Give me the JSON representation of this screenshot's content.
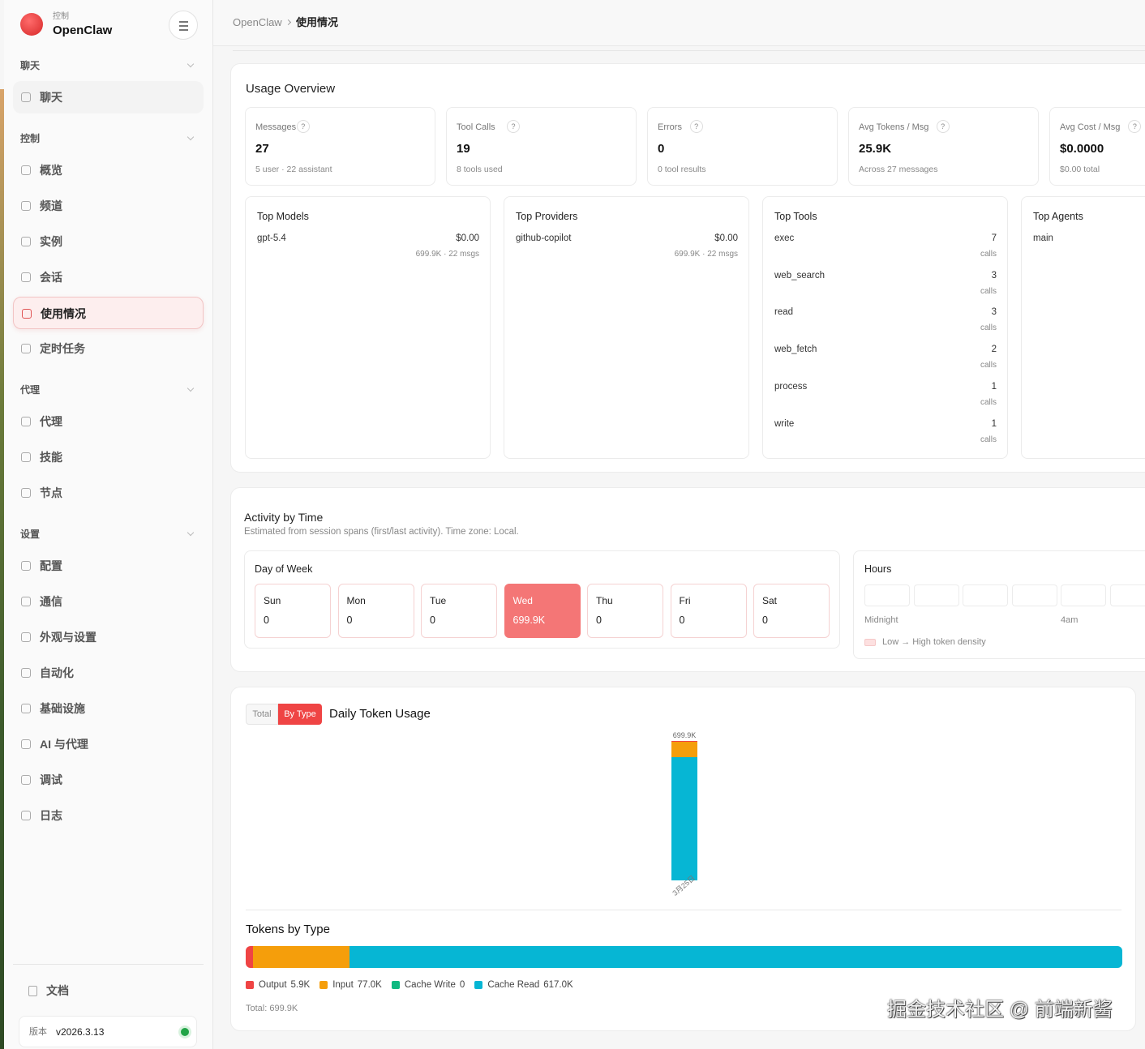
{
  "sidebar": {
    "brand": {
      "small": "控制",
      "name": "OpenClaw"
    },
    "sections": [
      {
        "title": "聊天",
        "items": [
          {
            "label": "聊天"
          }
        ]
      },
      {
        "title": "控制",
        "items": [
          {
            "label": "概览"
          },
          {
            "label": "频道"
          },
          {
            "label": "实例"
          },
          {
            "label": "会话"
          },
          {
            "label": "使用情况",
            "active": true
          },
          {
            "label": "定时任务"
          }
        ]
      },
      {
        "title": "代理",
        "items": [
          {
            "label": "代理"
          },
          {
            "label": "技能"
          },
          {
            "label": "节点"
          }
        ]
      },
      {
        "title": "设置",
        "items": [
          {
            "label": "配置"
          },
          {
            "label": "通信"
          },
          {
            "label": "外观与设置"
          },
          {
            "label": "自动化"
          },
          {
            "label": "基础设施"
          },
          {
            "label": "AI 与代理"
          },
          {
            "label": "调试"
          },
          {
            "label": "日志"
          }
        ]
      }
    ],
    "docs": "文档",
    "version": {
      "label": "版本",
      "value": "v2026.3.13"
    }
  },
  "breadcrumb": [
    "OpenClaw",
    "使用情况"
  ],
  "overview": {
    "title": "Usage Overview",
    "stats": [
      {
        "label": "Messages",
        "hint": "?",
        "value": "27",
        "sub": "5 user · 22 assistant"
      },
      {
        "label": "Tool Calls",
        "hint": "?",
        "value": "19",
        "sub": "8 tools used"
      },
      {
        "label": "Errors",
        "hint": "?",
        "value": "0",
        "sub": "0 tool results"
      },
      {
        "label": "Avg Tokens / Msg",
        "hint": "?",
        "value": "25.9K",
        "sub": "Across 27 messages"
      },
      {
        "label": "Avg Cost / Msg",
        "hint": "?",
        "value": "$0.0000",
        "sub": "$0.00 total"
      }
    ],
    "top_lists": [
      {
        "title": "Top Models",
        "rows": [
          {
            "name": "gpt-5.4",
            "value": "$0.00",
            "sub": "699.9K · 22 msgs"
          }
        ]
      },
      {
        "title": "Top Providers",
        "rows": [
          {
            "name": "github-copilot",
            "value": "$0.00",
            "sub": "699.9K · 22 msgs"
          }
        ]
      },
      {
        "title": "Top Tools",
        "rows": [
          {
            "name": "exec",
            "value": "7",
            "sub": "calls"
          },
          {
            "name": "web_search",
            "value": "3",
            "sub": "calls"
          },
          {
            "name": "read",
            "value": "3",
            "sub": "calls"
          },
          {
            "name": "web_fetch",
            "value": "2",
            "sub": "calls"
          },
          {
            "name": "process",
            "value": "1",
            "sub": "calls"
          },
          {
            "name": "write",
            "value": "1",
            "sub": "calls"
          }
        ]
      },
      {
        "title": "Top Agents",
        "rows": [
          {
            "name": "main"
          }
        ]
      }
    ]
  },
  "activity": {
    "title": "Activity by Time",
    "subtitle": "Estimated from session spans (first/last activity). Time zone: Local.",
    "day_of_week": {
      "title": "Day of Week",
      "days": [
        {
          "name": "Sun",
          "value": "0"
        },
        {
          "name": "Mon",
          "value": "0"
        },
        {
          "name": "Tue",
          "value": "0"
        },
        {
          "name": "Wed",
          "value": "699.9K",
          "highlight": true
        },
        {
          "name": "Thu",
          "value": "0"
        },
        {
          "name": "Fri",
          "value": "0"
        },
        {
          "name": "Sat",
          "value": "0"
        }
      ]
    },
    "hours": {
      "title": "Hours",
      "labels": [
        "Midnight",
        "4am"
      ],
      "legend": "Low → High token density"
    }
  },
  "daily": {
    "toggle": [
      "Total",
      "By Type"
    ],
    "title": "Daily Token Usage",
    "dates": [
      "3月25日"
    ],
    "total_labels": [
      "699.9K"
    ]
  },
  "tokens": {
    "title": "Tokens by Type",
    "types": [
      {
        "name": "Output",
        "color": "#ef4444",
        "value": 5900,
        "label": "5.9K"
      },
      {
        "name": "Input",
        "color": "#f59e0b",
        "value": 77000,
        "label": "77.0K"
      },
      {
        "name": "Cache Write",
        "color": "#10b981",
        "value": 0,
        "label": "0"
      },
      {
        "name": "Cache Read",
        "color": "#06b6d4",
        "value": 617000,
        "label": "617.0K"
      }
    ],
    "total": "Total: 699.9K"
  },
  "watermark": "掘金技术社区 @ 前端新酱"
}
